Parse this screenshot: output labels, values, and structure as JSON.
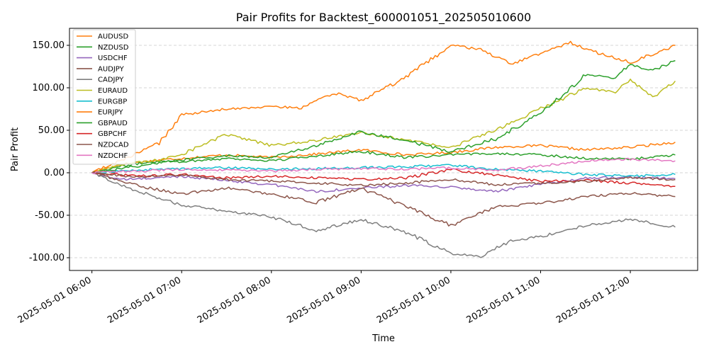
{
  "chart_data": {
    "type": "line",
    "title": "Pair Profits for Backtest_600001051_202505010600",
    "xlabel": "Time",
    "ylabel": "Pair Profit",
    "ylim": [
      -115,
      170
    ],
    "xlim_minutes": [
      -15,
      405
    ],
    "grid": "y-dashed",
    "legend_position": "top-left",
    "y_ticks": [
      -100,
      -50,
      0,
      50,
      100,
      150
    ],
    "y_tick_labels": [
      "-100.00",
      "-50.00",
      "0.00",
      "50.00",
      "100.00",
      "150.00"
    ],
    "x_ticks_minutes": [
      0,
      60,
      120,
      180,
      240,
      300,
      360
    ],
    "x_tick_labels": [
      "2025-05-01 06:00",
      "2025-05-01 07:00",
      "2025-05-01 08:00",
      "2025-05-01 09:00",
      "2025-05-01 10:00",
      "2025-05-01 11:00",
      "2025-05-01 12:00"
    ],
    "series": [
      {
        "name": "AUDUSD",
        "color": "#ff7f0e",
        "points": [
          [
            0,
            0
          ],
          [
            20,
            10
          ],
          [
            45,
            15
          ],
          [
            60,
            17
          ],
          [
            90,
            21
          ],
          [
            120,
            18
          ],
          [
            150,
            22
          ],
          [
            180,
            27
          ],
          [
            210,
            21
          ],
          [
            240,
            24
          ],
          [
            270,
            30
          ],
          [
            300,
            32
          ],
          [
            330,
            27
          ],
          [
            360,
            30
          ],
          [
            390,
            36
          ]
        ]
      },
      {
        "name": "NZDUSD",
        "color": "#2ca02c",
        "points": [
          [
            0,
            0
          ],
          [
            20,
            8
          ],
          [
            45,
            14
          ],
          [
            60,
            13
          ],
          [
            90,
            17
          ],
          [
            120,
            14
          ],
          [
            150,
            20
          ],
          [
            180,
            25
          ],
          [
            210,
            18
          ],
          [
            240,
            21
          ],
          [
            270,
            23
          ],
          [
            300,
            21
          ],
          [
            330,
            17
          ],
          [
            360,
            16
          ],
          [
            390,
            21
          ]
        ]
      },
      {
        "name": "USDCHF",
        "color": "#9467bd",
        "points": [
          [
            0,
            0
          ],
          [
            20,
            -8
          ],
          [
            45,
            -6
          ],
          [
            60,
            -4
          ],
          [
            90,
            -9
          ],
          [
            120,
            -14
          ],
          [
            150,
            -22
          ],
          [
            180,
            -18
          ],
          [
            210,
            -15
          ],
          [
            240,
            -17
          ],
          [
            270,
            -22
          ],
          [
            300,
            -14
          ],
          [
            330,
            -6
          ],
          [
            360,
            -5
          ],
          [
            390,
            -7
          ]
        ]
      },
      {
        "name": "AUDJPY",
        "color": "#8c564b",
        "points": [
          [
            0,
            0
          ],
          [
            30,
            -15
          ],
          [
            60,
            -25
          ],
          [
            90,
            -18
          ],
          [
            120,
            -25
          ],
          [
            150,
            -35
          ],
          [
            180,
            -18
          ],
          [
            210,
            -40
          ],
          [
            240,
            -62
          ],
          [
            270,
            -40
          ],
          [
            300,
            -36
          ],
          [
            330,
            -28
          ],
          [
            360,
            -24
          ],
          [
            390,
            -28
          ]
        ]
      },
      {
        "name": "CADJPY",
        "color": "#7f7f7f",
        "points": [
          [
            0,
            0
          ],
          [
            20,
            -15
          ],
          [
            45,
            -30
          ],
          [
            60,
            -38
          ],
          [
            90,
            -45
          ],
          [
            120,
            -52
          ],
          [
            150,
            -68
          ],
          [
            180,
            -55
          ],
          [
            210,
            -70
          ],
          [
            240,
            -95
          ],
          [
            260,
            -98
          ],
          [
            280,
            -80
          ],
          [
            300,
            -75
          ],
          [
            330,
            -62
          ],
          [
            360,
            -55
          ],
          [
            390,
            -64
          ]
        ]
      },
      {
        "name": "EURAUD",
        "color": "#bcbd22",
        "points": [
          [
            0,
            0
          ],
          [
            20,
            10
          ],
          [
            45,
            15
          ],
          [
            60,
            22
          ],
          [
            90,
            45
          ],
          [
            120,
            32
          ],
          [
            150,
            38
          ],
          [
            180,
            48
          ],
          [
            210,
            38
          ],
          [
            240,
            30
          ],
          [
            270,
            50
          ],
          [
            300,
            75
          ],
          [
            330,
            100
          ],
          [
            350,
            95
          ],
          [
            360,
            110
          ],
          [
            375,
            88
          ],
          [
            390,
            108
          ]
        ]
      },
      {
        "name": "EURGBP",
        "color": "#17becf",
        "points": [
          [
            0,
            0
          ],
          [
            30,
            3
          ],
          [
            60,
            5
          ],
          [
            90,
            6
          ],
          [
            120,
            4
          ],
          [
            150,
            5
          ],
          [
            180,
            6
          ],
          [
            210,
            7
          ],
          [
            240,
            9
          ],
          [
            270,
            4
          ],
          [
            300,
            2
          ],
          [
            330,
            -2
          ],
          [
            360,
            -4
          ],
          [
            390,
            -2
          ]
        ]
      },
      {
        "name": "EURJPY",
        "color": "#ff7f0e",
        "points": [
          [
            0,
            0
          ],
          [
            20,
            15
          ],
          [
            45,
            35
          ],
          [
            60,
            68
          ],
          [
            90,
            75
          ],
          [
            120,
            78
          ],
          [
            140,
            76
          ],
          [
            150,
            86
          ],
          [
            165,
            93
          ],
          [
            180,
            85
          ],
          [
            210,
            112
          ],
          [
            240,
            150
          ],
          [
            260,
            145
          ],
          [
            280,
            128
          ],
          [
            300,
            140
          ],
          [
            320,
            153
          ],
          [
            340,
            140
          ],
          [
            360,
            130
          ],
          [
            390,
            150
          ]
        ]
      },
      {
        "name": "GBPAUD",
        "color": "#2ca02c",
        "points": [
          [
            0,
            0
          ],
          [
            20,
            5
          ],
          [
            45,
            12
          ],
          [
            60,
            15
          ],
          [
            90,
            20
          ],
          [
            120,
            18
          ],
          [
            150,
            32
          ],
          [
            180,
            48
          ],
          [
            210,
            38
          ],
          [
            240,
            25
          ],
          [
            270,
            40
          ],
          [
            300,
            70
          ],
          [
            330,
            115
          ],
          [
            350,
            112
          ],
          [
            360,
            128
          ],
          [
            375,
            120
          ],
          [
            390,
            132
          ]
        ]
      },
      {
        "name": "GBPCHF",
        "color": "#d62728",
        "points": [
          [
            0,
            0
          ],
          [
            30,
            -4
          ],
          [
            60,
            -2
          ],
          [
            90,
            -6
          ],
          [
            120,
            -4
          ],
          [
            150,
            -6
          ],
          [
            180,
            -8
          ],
          [
            210,
            -6
          ],
          [
            240,
            4
          ],
          [
            270,
            -3
          ],
          [
            300,
            -10
          ],
          [
            330,
            -9
          ],
          [
            360,
            -12
          ],
          [
            390,
            -16
          ]
        ]
      },
      {
        "name": "NZDCAD",
        "color": "#8c564b",
        "points": [
          [
            0,
            0
          ],
          [
            30,
            -5
          ],
          [
            60,
            -3
          ],
          [
            90,
            -8
          ],
          [
            120,
            -10
          ],
          [
            150,
            -12
          ],
          [
            180,
            -15
          ],
          [
            210,
            -12
          ],
          [
            240,
            -8
          ],
          [
            270,
            -14
          ],
          [
            300,
            -12
          ],
          [
            330,
            -10
          ],
          [
            360,
            -6
          ],
          [
            390,
            -8
          ]
        ]
      },
      {
        "name": "NZDCHF",
        "color": "#e377c2",
        "points": [
          [
            0,
            0
          ],
          [
            30,
            2
          ],
          [
            60,
            4
          ],
          [
            90,
            3
          ],
          [
            120,
            2
          ],
          [
            150,
            4
          ],
          [
            180,
            5
          ],
          [
            210,
            4
          ],
          [
            240,
            6
          ],
          [
            270,
            3
          ],
          [
            300,
            8
          ],
          [
            330,
            14
          ],
          [
            360,
            16
          ],
          [
            390,
            14
          ]
        ]
      }
    ]
  }
}
